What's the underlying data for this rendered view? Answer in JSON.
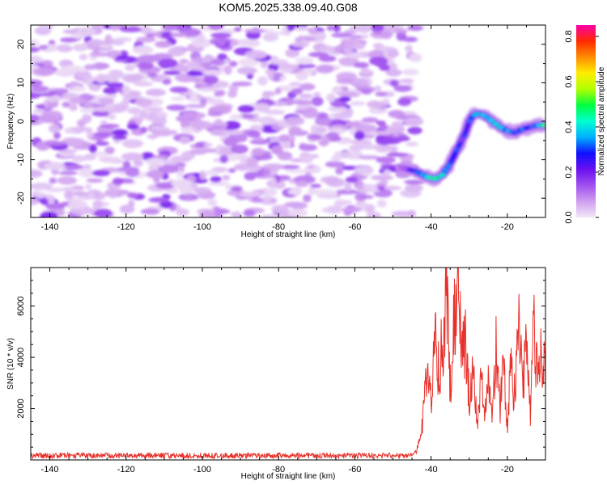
{
  "title": "KOM5.2025.338.09.40.G08",
  "colors": {
    "snr_line": "#e8302a",
    "colormap": [
      "#f2e8f7",
      "#cf9ff0",
      "#a050f0",
      "#6a10f0",
      "#1010ff",
      "#00b0ff",
      "#00ffd0",
      "#00ff40",
      "#b0ff00",
      "#ffee00",
      "#ff8c00",
      "#ff2a00",
      "#ff00aa"
    ]
  },
  "chart_data": [
    {
      "type": "heatmap",
      "xlabel": "Height of straight line (km)",
      "ylabel": "Frequency (Hz)",
      "xlim": [
        -145,
        -10
      ],
      "ylim": [
        -25,
        25
      ],
      "xticks": [
        -140,
        -120,
        -100,
        -80,
        -60,
        -40,
        -20
      ],
      "yticks": [
        -20,
        -10,
        0,
        10,
        20
      ],
      "noise_region_x": [
        -145,
        -44
      ],
      "noise_level": 0.12,
      "ridge": {
        "x": [
          -48,
          -44,
          -41,
          -39,
          -37,
          -35,
          -33,
          -31,
          -30,
          -29,
          -28,
          -26,
          -24,
          -22,
          -20,
          -18,
          -16,
          -14,
          -12,
          -10
        ],
        "y": [
          -12,
          -13,
          -14.5,
          -15,
          -14,
          -11,
          -7,
          -3,
          0,
          1.5,
          2,
          1.5,
          0,
          -1.5,
          -2.5,
          -3,
          -2,
          -1.5,
          -1,
          -1
        ],
        "amplitude": [
          0.2,
          0.3,
          0.45,
          0.5,
          0.45,
          0.32,
          0.3,
          0.3,
          0.3,
          0.35,
          0.45,
          0.4,
          0.42,
          0.45,
          0.4,
          0.3,
          0.35,
          0.3,
          0.35,
          0.55
        ]
      },
      "colorbar": {
        "label": "Normalized spectral amplitude",
        "range": [
          0,
          0.85
        ],
        "ticks": [
          "0.0",
          "0.2",
          "0.4",
          "0.6",
          "0.8"
        ]
      }
    },
    {
      "type": "line",
      "xlabel": "Height of straight line (km)",
      "ylabel": "SNR (10 * v/v)",
      "xlim": [
        -145,
        -10
      ],
      "ylim": [
        0,
        7500
      ],
      "xticks": [
        -140,
        -120,
        -100,
        -80,
        -60,
        -40,
        -20
      ],
      "yticks": [
        2000,
        4000,
        6000
      ],
      "series": [
        {
          "x": [
            -145,
            -140,
            -130,
            -120,
            -110,
            -100,
            -90,
            -80,
            -70,
            -60,
            -50,
            -46,
            -44,
            -43,
            -42,
            -41,
            -40,
            -39,
            -38,
            -37,
            -36,
            -35,
            -34,
            -33,
            -32,
            -31,
            -30,
            -29,
            -28,
            -27,
            -26,
            -25,
            -24,
            -23,
            -22,
            -21,
            -20,
            -19,
            -18,
            -17,
            -16,
            -15,
            -14,
            -13,
            -12,
            -11,
            -10
          ],
          "y": [
            150,
            160,
            140,
            150,
            140,
            160,
            150,
            140,
            150,
            140,
            160,
            180,
            300,
            700,
            1900,
            3300,
            2300,
            4500,
            3700,
            4400,
            6400,
            3000,
            5200,
            7500,
            3900,
            5000,
            2400,
            3600,
            1300,
            3300,
            1700,
            2900,
            1400,
            4600,
            1900,
            3500,
            1200,
            3900,
            2300,
            5100,
            3100,
            4100,
            1900,
            5100,
            3300,
            4300,
            3600
          ]
        }
      ]
    }
  ]
}
